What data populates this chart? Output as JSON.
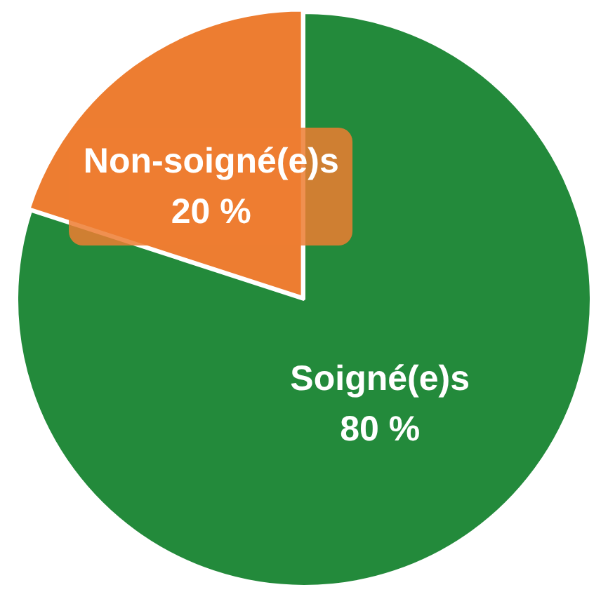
{
  "chart_data": {
    "type": "pie",
    "categories": [
      "Soigné(e)s",
      "Non-soigné(e)s"
    ],
    "values": [
      80,
      20
    ],
    "colors": [
      "#238a3b",
      "#ed7d31"
    ],
    "value_labels": [
      "80 %",
      "20 %"
    ],
    "legend": false
  }
}
